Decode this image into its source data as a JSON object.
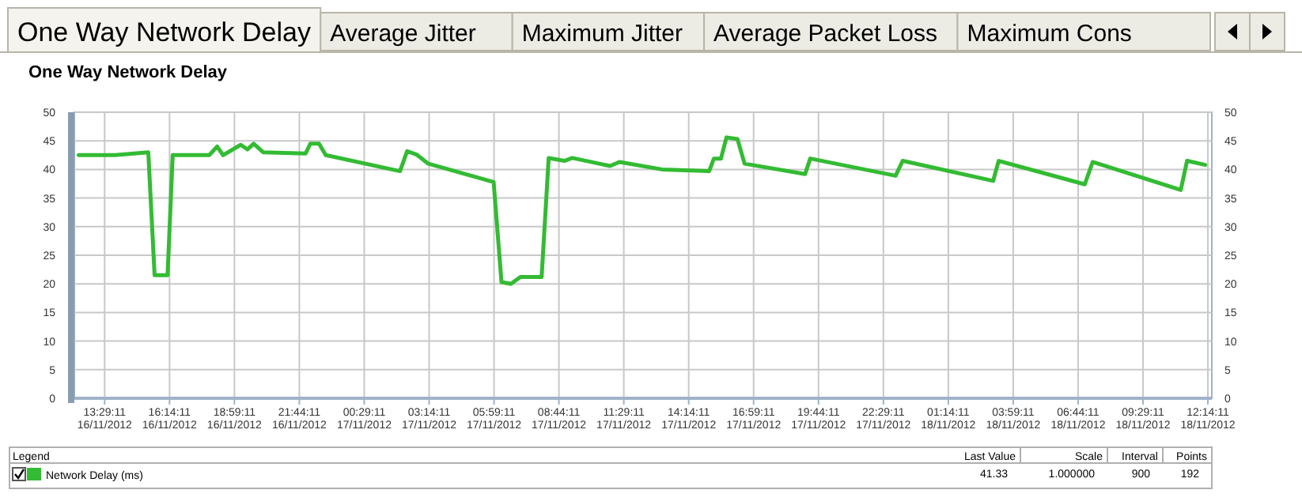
{
  "chart_data": {
    "type": "line",
    "title": "One Way Network Delay",
    "annotations": [
      "One Way Network Delay",
      "Average Jitter",
      "Maximum Jitter",
      "Average Packet Loss",
      "Maximum Cons",
      "Last Value",
      "Scale",
      "Interval",
      "Points",
      "41.33",
      "1.000000",
      "900",
      "192"
    ],
    "legend_title": "Legend",
    "legend": "bottom",
    "grid": true,
    "line_style": "solid",
    "marker": "none",
    "xlim": [
      "2012-11-16T12:12",
      "2012-11-18T12:24"
    ],
    "xticks": [
      {
        "value": "2012-11-16T13:29",
        "label": "13:29:11\n16/11/2012"
      },
      {
        "value": "2012-11-16T16:14",
        "label": "16:14:11\n16/11/2012"
      },
      {
        "value": "2012-11-16T18:59",
        "label": "18:59:11\n16/11/2012"
      },
      {
        "value": "2012-11-16T21:44",
        "label": "21:44:11\n16/11/2012"
      },
      {
        "value": "2012-11-17T00:29",
        "label": "00:29:11\n17/11/2012"
      },
      {
        "value": "2012-11-17T03:14",
        "label": "03:14:11\n17/11/2012"
      },
      {
        "value": "2012-11-17T05:59",
        "label": "05:59:11\n17/11/2012"
      },
      {
        "value": "2012-11-17T08:44",
        "label": "08:44:11\n17/11/2012"
      },
      {
        "value": "2012-11-17T11:29",
        "label": "11:29:11\n17/11/2012"
      },
      {
        "value": "2012-11-17T14:14",
        "label": "14:14:11\n17/11/2012"
      },
      {
        "value": "2012-11-17T16:59",
        "label": "16:59:11\n17/11/2012"
      },
      {
        "value": "2012-11-17T19:44",
        "label": "19:44:11\n17/11/2012"
      },
      {
        "value": "2012-11-17T22:29",
        "label": "22:29:11\n17/11/2012"
      },
      {
        "value": "2012-11-18T01:14",
        "label": "01:14:11\n18/11/2012"
      },
      {
        "value": "2012-11-18T03:59",
        "label": "03:59:11\n18/11/2012"
      },
      {
        "value": "2012-11-18T06:44",
        "label": "06:44:11\n18/11/2012"
      },
      {
        "value": "2012-11-18T09:29",
        "label": "09:29:11\n18/11/2012"
      },
      {
        "value": "2012-11-18T12:14",
        "label": "12:14:11\n18/11/2012"
      }
    ],
    "ylim": [
      0,
      50
    ],
    "yticks": [
      0,
      5,
      10,
      15,
      20,
      25,
      30,
      35,
      40,
      45,
      50
    ],
    "y2lim": [
      0,
      50
    ],
    "y2ticks": [
      0,
      5,
      10,
      15,
      20,
      25,
      30,
      35,
      40,
      45,
      50
    ],
    "series": [
      {
        "name": "Network Delay (ms)",
        "color": "#33bb33",
        "x": [
          "2012-11-16T12:23",
          "2012-11-16T13:56",
          "2012-11-16T15:20",
          "2012-11-16T15:36",
          "2012-11-16T16:09",
          "2012-11-16T16:22",
          "2012-11-16T17:55",
          "2012-11-16T18:15",
          "2012-11-16T18:30",
          "2012-11-16T19:15",
          "2012-11-16T19:32",
          "2012-11-16T19:48",
          "2012-11-16T20:12",
          "2012-11-16T22:00",
          "2012-11-16T22:12",
          "2012-11-16T22:34",
          "2012-11-16T22:51",
          "2012-11-17T02:00",
          "2012-11-17T02:18",
          "2012-11-17T02:42",
          "2012-11-17T03:12",
          "2012-11-17T05:58",
          "2012-11-17T06:18",
          "2012-11-17T06:42",
          "2012-11-17T07:06",
          "2012-11-17T08:00",
          "2012-11-17T08:18",
          "2012-11-17T08:58",
          "2012-11-17T09:18",
          "2012-11-17T10:54",
          "2012-11-17T11:18",
          "2012-11-17T13:06",
          "2012-11-17T15:06",
          "2012-11-17T15:18",
          "2012-11-17T15:36",
          "2012-11-17T15:50",
          "2012-11-17T16:18",
          "2012-11-17T16:36",
          "2012-11-17T19:10",
          "2012-11-17T19:23",
          "2012-11-17T23:00",
          "2012-11-17T23:18",
          "2012-11-18T03:08",
          "2012-11-18T03:22",
          "2012-11-18T07:01",
          "2012-11-18T07:21",
          "2012-11-18T11:05",
          "2012-11-18T11:21",
          "2012-11-18T12:07"
        ],
        "values": [
          42.5,
          42.5,
          43,
          21.5,
          21.5,
          42.5,
          42.5,
          44,
          42.5,
          44.3,
          43.5,
          44.5,
          43,
          42.8,
          44.5,
          44.5,
          42.5,
          39.7,
          43.2,
          42.6,
          41,
          37.8,
          20.3,
          20,
          21.2,
          21.2,
          42,
          41.5,
          42,
          40.6,
          41.3,
          40,
          39.7,
          41.9,
          41.9,
          45.6,
          45.3,
          41,
          39.2,
          41.9,
          38.9,
          41.5,
          38,
          41.5,
          37.4,
          41.3,
          36.4,
          41.5,
          40.8
        ]
      }
    ]
  }
}
